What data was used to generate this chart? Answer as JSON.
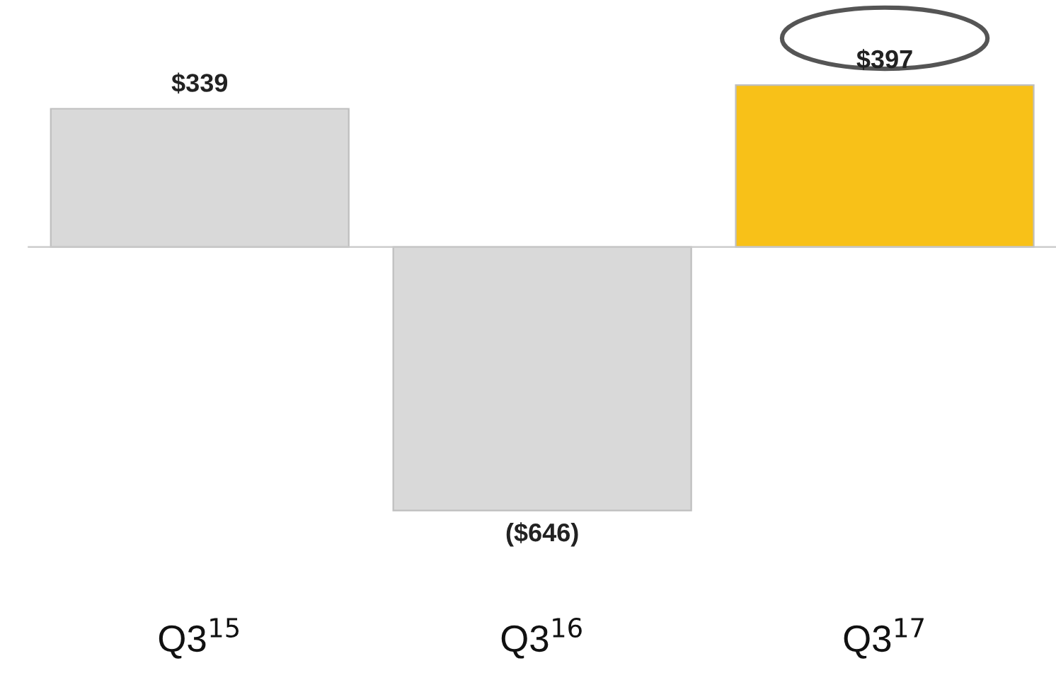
{
  "chart_data": {
    "type": "bar",
    "categories": [
      "Q3$^{15}$",
      "Q3$^{16}$",
      "Q3$^{17}$"
    ],
    "values": [
      339,
      -646,
      397
    ],
    "colors": [
      "#d9d9d9",
      "#d9d9d9",
      "#f8c118"
    ],
    "value_labels": [
      "$339",
      "($646)",
      "$397"
    ]
  }
}
